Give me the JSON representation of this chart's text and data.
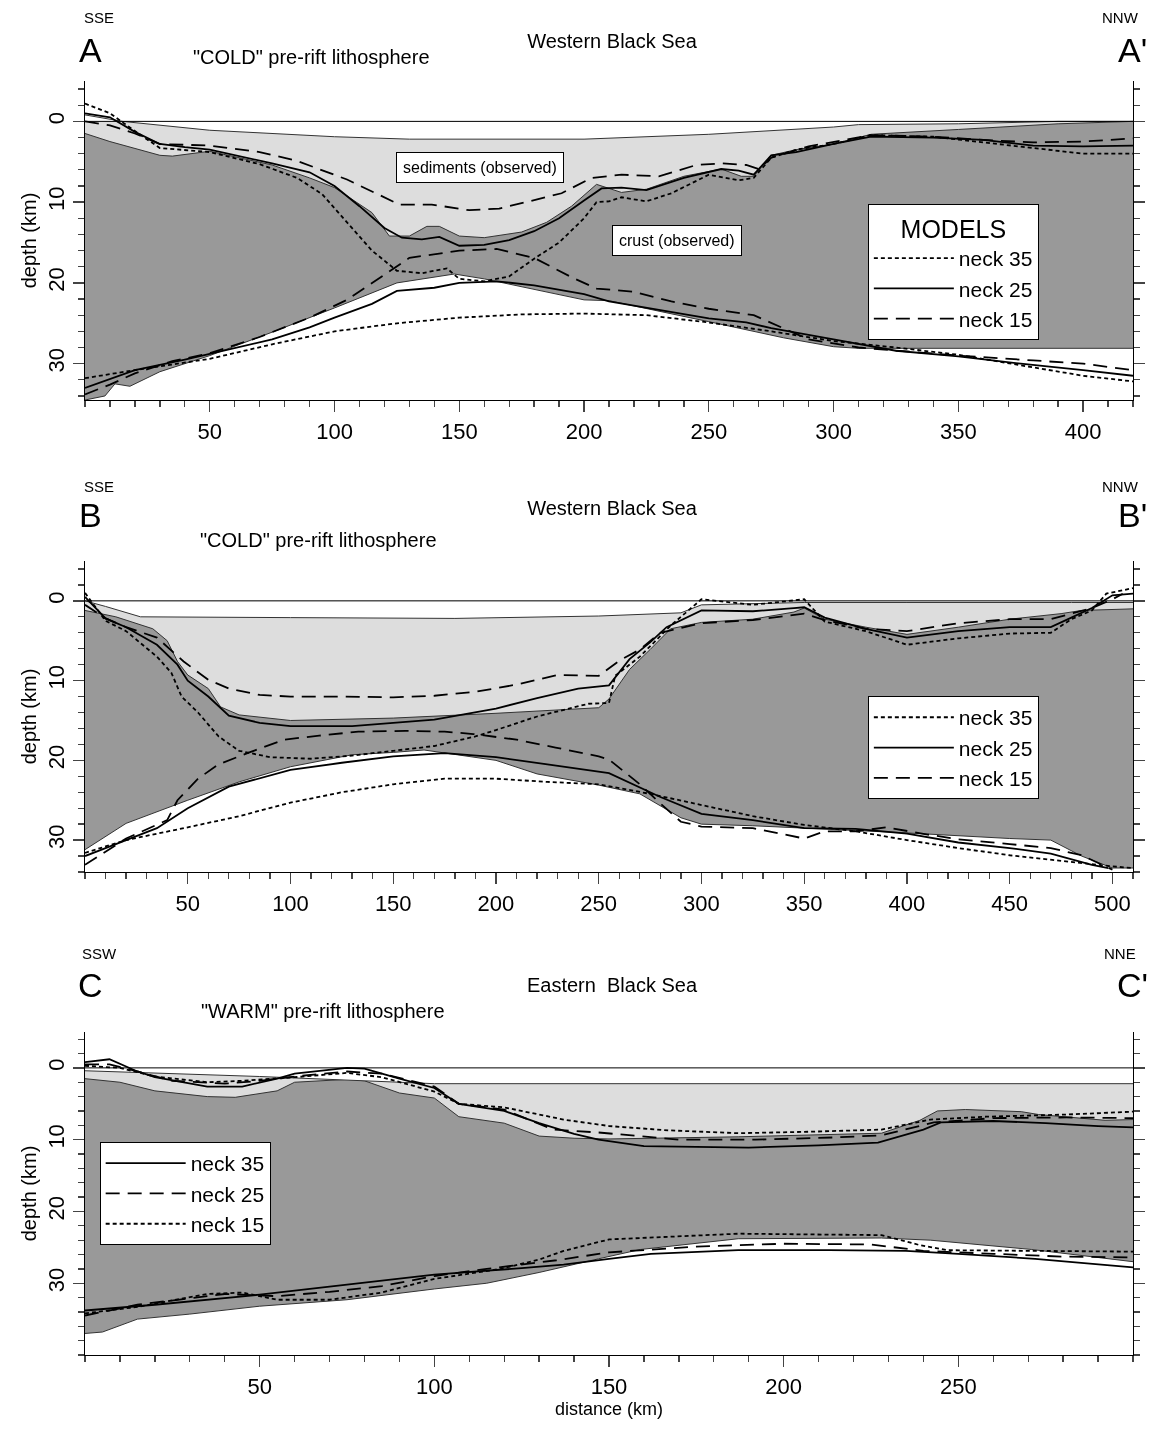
{
  "chart_data": [
    {
      "type": "line",
      "title": "Western Black Sea",
      "subtitle": "\"COLD\" pre-rift lithosphere",
      "ylabel": "depth (km)",
      "annotations": [
        "SSE",
        "A",
        "NNW",
        "A'",
        "sediments (observed)",
        "crust (observed)"
      ],
      "xlim": [
        0,
        420
      ],
      "xticks": [
        {
          "value": 0,
          "label": null
        },
        {
          "value": 10,
          "label": null
        },
        {
          "value": 20,
          "label": null
        },
        {
          "value": 30,
          "label": null
        },
        {
          "value": 40,
          "label": null
        },
        50,
        {
          "value": 60,
          "label": null
        },
        {
          "value": 70,
          "label": null
        },
        {
          "value": 80,
          "label": null
        },
        {
          "value": 90,
          "label": null
        },
        100,
        {
          "value": 110,
          "label": null
        },
        {
          "value": 120,
          "label": null
        },
        {
          "value": 130,
          "label": null
        },
        {
          "value": 140,
          "label": null
        },
        150,
        {
          "value": 160,
          "label": null
        },
        {
          "value": 170,
          "label": null
        },
        {
          "value": 180,
          "label": null
        },
        {
          "value": 190,
          "label": null
        },
        200,
        {
          "value": 210,
          "label": null
        },
        {
          "value": 220,
          "label": null
        },
        {
          "value": 230,
          "label": null
        },
        {
          "value": 240,
          "label": null
        },
        250,
        {
          "value": 260,
          "label": null
        },
        {
          "value": 270,
          "label": null
        },
        {
          "value": 280,
          "label": null
        },
        {
          "value": 290,
          "label": null
        },
        300,
        {
          "value": 310,
          "label": null
        },
        {
          "value": 320,
          "label": null
        },
        {
          "value": 330,
          "label": null
        },
        {
          "value": 340,
          "label": null
        },
        350,
        {
          "value": 360,
          "label": null
        },
        {
          "value": 370,
          "label": null
        },
        {
          "value": 380,
          "label": null
        },
        {
          "value": 390,
          "label": null
        },
        400,
        {
          "value": 410,
          "label": null
        },
        {
          "value": 420,
          "label": null
        }
      ],
      "ylim": [
        34.5,
        -5
      ],
      "yticks": [
        {
          "value": -4,
          "label": null
        },
        {
          "value": -2,
          "label": null
        },
        0,
        {
          "value": 2,
          "label": null
        },
        {
          "value": 4,
          "label": null
        },
        {
          "value": 6,
          "label": null
        },
        {
          "value": 8,
          "label": null
        },
        10,
        {
          "value": 12,
          "label": null
        },
        {
          "value": 14,
          "label": null
        },
        {
          "value": 16,
          "label": null
        },
        {
          "value": 18,
          "label": null
        },
        20,
        {
          "value": 22,
          "label": null
        },
        {
          "value": 24,
          "label": null
        },
        {
          "value": 26,
          "label": null
        },
        {
          "value": 28,
          "label": null
        },
        30,
        {
          "value": 32,
          "label": null
        },
        {
          "value": 34,
          "label": null
        }
      ],
      "ref_lines": [
        {
          "axis": "y",
          "value": 0,
          "color": "#000000"
        }
      ],
      "legend": "right",
      "legend_title": "MODELS",
      "series": [
        {
          "type": "area",
          "color": "#ffffff",
          "x": [
            0,
            15,
            50,
            100,
            130,
            200,
            250,
            300,
            310,
            350,
            390,
            420
          ],
          "values": [
            -0.8,
            0,
            1.1,
            1.9,
            2.2,
            2.2,
            1.6,
            0.7,
            0.4,
            0.3,
            0,
            0
          ]
        },
        {
          "type": "area",
          "color": "#dddddd",
          "x": [
            0,
            10,
            30,
            35,
            50,
            75,
            90,
            100,
            115,
            122,
            130,
            137,
            142,
            150,
            160,
            175,
            185,
            195,
            205,
            215,
            225,
            240,
            255,
            263,
            268,
            275,
            285,
            300,
            315,
            350,
            390,
            420
          ],
          "values": [
            1.5,
            2.5,
            4.2,
            4.3,
            3.7,
            5.4,
            7,
            8.2,
            11.3,
            14.2,
            14.2,
            13,
            13,
            14.2,
            14.4,
            13.7,
            12.5,
            10.5,
            7.8,
            8.8,
            8.4,
            6.8,
            5.9,
            6.8,
            6.8,
            4.2,
            3.5,
            2.8,
            1.6,
            1.0,
            0.3,
            0
          ]
        },
        {
          "type": "area",
          "color": "#999999",
          "x": [
            0,
            8,
            12,
            18,
            30,
            50,
            75,
            100,
            125,
            148,
            160,
            200,
            210,
            250,
            280,
            300,
            310,
            420
          ],
          "values": [
            34.5,
            34,
            32.5,
            32.8,
            31,
            29,
            26.1,
            23.1,
            20,
            18.9,
            19.5,
            22.1,
            22.2,
            24.8,
            26.8,
            27.9,
            28.1,
            28.1
          ]
        },
        {
          "name": "neck 35",
          "color": "#000000",
          "line_style": "dotted",
          "x": [
            0,
            10,
            20,
            30,
            50,
            70,
            85,
            95,
            105,
            115,
            125,
            135,
            145,
            150,
            160,
            170,
            180,
            190,
            200,
            205,
            210,
            215,
            225,
            235,
            250,
            262,
            268,
            275,
            285,
            300,
            315,
            340,
            360,
            380,
            400,
            420
          ],
          "values": [
            -2.2,
            -1,
            1.2,
            3.3,
            3.8,
            5.3,
            7,
            9,
            12.5,
            16,
            18.5,
            18.8,
            18.2,
            19.5,
            19.8,
            19.2,
            17,
            15,
            12,
            10,
            9.9,
            9.4,
            9.9,
            8.9,
            6.6,
            7.3,
            7,
            4.5,
            3.5,
            2.8,
            1.7,
            1.9,
            2.6,
            3.3,
            4,
            4
          ]
        },
        {
          "color": "#000000",
          "line_style": "dotted",
          "x": [
            0,
            20,
            50,
            75,
            100,
            125,
            150,
            175,
            200,
            225,
            250,
            275,
            300,
            325,
            350,
            375,
            400,
            420
          ],
          "values": [
            31.8,
            30.8,
            29.4,
            27.6,
            26,
            25,
            24.3,
            23.9,
            23.8,
            24,
            24.9,
            26,
            27.2,
            28,
            28.9,
            30.2,
            31.5,
            32.2
          ]
        },
        {
          "name": "neck 25",
          "color": "#000000",
          "line_style": "solid",
          "x": [
            0,
            10,
            20,
            30,
            40,
            50,
            75,
            90,
            100,
            110,
            120,
            127,
            135,
            142,
            150,
            160,
            170,
            180,
            190,
            200,
            207,
            215,
            225,
            240,
            255,
            262,
            268,
            275,
            285,
            300,
            315,
            340,
            360,
            380,
            400,
            420
          ],
          "values": [
            -1,
            -0.5,
            1.3,
            2.8,
            3.2,
            3.5,
            5.2,
            6.3,
            8,
            10.5,
            13.2,
            14.4,
            14.6,
            14.3,
            15.4,
            15.3,
            14.7,
            13.6,
            12,
            9.8,
            8.3,
            8.2,
            8.5,
            7,
            5.9,
            6.1,
            6.6,
            4.2,
            3.8,
            2.8,
            1.9,
            2,
            2.3,
            3,
            3.1,
            3
          ]
        },
        {
          "color": "#000000",
          "line_style": "solid",
          "x": [
            0,
            20,
            40,
            50,
            75,
            90,
            100,
            115,
            125,
            140,
            150,
            165,
            180,
            200,
            210,
            250,
            265,
            275,
            300,
            325,
            350,
            375,
            400,
            420
          ],
          "values": [
            33,
            30.8,
            29.5,
            28.8,
            27,
            25.5,
            24.3,
            22.6,
            21,
            20.6,
            20,
            19.8,
            20.3,
            21.4,
            22.3,
            24.4,
            24.9,
            25.6,
            27,
            28.4,
            29.1,
            30,
            30.8,
            31.5
          ]
        },
        {
          "name": "neck 15",
          "color": "#000000",
          "line_style": "dashed",
          "x": [
            0,
            10,
            20,
            30,
            50,
            70,
            85,
            105,
            126,
            139,
            154,
            166,
            182,
            191,
            203,
            215,
            230,
            245,
            255,
            265,
            270,
            275,
            290,
            315,
            340,
            360,
            380,
            400,
            420
          ],
          "values": [
            0,
            0.5,
            1.5,
            2.8,
            3,
            3.8,
            4.9,
            7.2,
            10.3,
            10.3,
            11,
            10.8,
            9.6,
            8.9,
            7,
            6.6,
            6.8,
            5.4,
            5.2,
            5.4,
            5.9,
            4.5,
            3.1,
            1.7,
            1.9,
            2.3,
            2.6,
            2.5,
            2.1
          ]
        },
        {
          "color": "#000000",
          "line_style": "dashed",
          "x": [
            0,
            10,
            20,
            35,
            50,
            70,
            90,
            105,
            120,
            130,
            150,
            165,
            180,
            195,
            205,
            220,
            235,
            250,
            268,
            290,
            310,
            350,
            380,
            400,
            420
          ],
          "values": [
            33.8,
            32.6,
            31.2,
            29.7,
            28.7,
            26.7,
            24.3,
            22.1,
            19,
            16.9,
            16,
            15.8,
            16.9,
            19.3,
            20.7,
            21.1,
            22.3,
            23.2,
            24,
            27,
            28,
            29,
            29.6,
            30,
            30.8
          ]
        }
      ]
    },
    {
      "type": "line",
      "title": "Western Black Sea",
      "subtitle": "\"COLD\" pre-rift lithosphere",
      "ylabel": "depth (km)",
      "annotations": [
        "SSE",
        "B",
        "NNW",
        "B'"
      ],
      "xlim": [
        0,
        510
      ],
      "xticks": [
        {
          "value": 0,
          "label": null
        },
        {
          "value": 10,
          "label": null
        },
        {
          "value": 20,
          "label": null
        },
        {
          "value": 30,
          "label": null
        },
        {
          "value": 40,
          "label": null
        },
        50,
        {
          "value": 60,
          "label": null
        },
        {
          "value": 70,
          "label": null
        },
        {
          "value": 80,
          "label": null
        },
        {
          "value": 90,
          "label": null
        },
        100,
        {
          "value": 110,
          "label": null
        },
        {
          "value": 120,
          "label": null
        },
        {
          "value": 130,
          "label": null
        },
        {
          "value": 140,
          "label": null
        },
        150,
        {
          "value": 160,
          "label": null
        },
        {
          "value": 170,
          "label": null
        },
        {
          "value": 180,
          "label": null
        },
        {
          "value": 190,
          "label": null
        },
        200,
        {
          "value": 210,
          "label": null
        },
        {
          "value": 220,
          "label": null
        },
        {
          "value": 230,
          "label": null
        },
        {
          "value": 240,
          "label": null
        },
        250,
        {
          "value": 260,
          "label": null
        },
        {
          "value": 270,
          "label": null
        },
        {
          "value": 280,
          "label": null
        },
        {
          "value": 290,
          "label": null
        },
        300,
        {
          "value": 310,
          "label": null
        },
        {
          "value": 320,
          "label": null
        },
        {
          "value": 330,
          "label": null
        },
        {
          "value": 340,
          "label": null
        },
        350,
        {
          "value": 360,
          "label": null
        },
        {
          "value": 370,
          "label": null
        },
        {
          "value": 380,
          "label": null
        },
        {
          "value": 390,
          "label": null
        },
        400,
        {
          "value": 410,
          "label": null
        },
        {
          "value": 420,
          "label": null
        },
        {
          "value": 430,
          "label": null
        },
        {
          "value": 440,
          "label": null
        },
        450,
        {
          "value": 460,
          "label": null
        },
        {
          "value": 470,
          "label": null
        },
        {
          "value": 480,
          "label": null
        },
        {
          "value": 490,
          "label": null
        },
        500,
        {
          "value": 510,
          "label": null
        }
      ],
      "ylim": [
        34,
        -5
      ],
      "yticks": [
        {
          "value": -4,
          "label": null
        },
        {
          "value": -2,
          "label": null
        },
        0,
        {
          "value": 2,
          "label": null
        },
        {
          "value": 4,
          "label": null
        },
        {
          "value": 6,
          "label": null
        },
        {
          "value": 8,
          "label": null
        },
        10,
        {
          "value": 12,
          "label": null
        },
        {
          "value": 14,
          "label": null
        },
        {
          "value": 16,
          "label": null
        },
        {
          "value": 18,
          "label": null
        },
        20,
        {
          "value": 22,
          "label": null
        },
        {
          "value": 24,
          "label": null
        },
        {
          "value": 26,
          "label": null
        },
        {
          "value": 28,
          "label": null
        },
        30,
        {
          "value": 32,
          "label": null
        },
        {
          "value": 34,
          "label": null
        }
      ],
      "ref_lines": [
        {
          "axis": "y",
          "value": 0,
          "color": "#000000"
        }
      ],
      "legend": "right",
      "series": [
        {
          "type": "area",
          "color": "#ffffff",
          "x": [
            0,
            10,
            27,
            100,
            180,
            250,
            290,
            300,
            350,
            400,
            480,
            510
          ],
          "values": [
            0,
            0.7,
            2,
            2.1,
            2.2,
            1.9,
            1.5,
            0.5,
            0.2,
            0.2,
            0.2,
            0.2
          ]
        },
        {
          "type": "area",
          "color": "#dddddd",
          "x": [
            0,
            15,
            33,
            40,
            45,
            50,
            60,
            66,
            75,
            100,
            150,
            200,
            250,
            255,
            265,
            275,
            285,
            300,
            325,
            345,
            350,
            360,
            380,
            400,
            425,
            450,
            475,
            485,
            510
          ],
          "values": [
            1.2,
            2,
            3.5,
            5,
            7.6,
            9.3,
            11,
            13.3,
            14.3,
            15,
            14.7,
            14.1,
            13.4,
            12.3,
            8.6,
            6.1,
            3.5,
            2.7,
            2.3,
            1.4,
            0.9,
            2.3,
            3.3,
            4.2,
            3.3,
            2.3,
            1.6,
            1.2,
            1
          ]
        },
        {
          "type": "area",
          "color": "#999999",
          "x": [
            0,
            20,
            50,
            75,
            100,
            130,
            150,
            165,
            200,
            220,
            250,
            270,
            290,
            300,
            325,
            350,
            375,
            400,
            450,
            470,
            485,
            500,
            510
          ],
          "values": [
            31.2,
            27.9,
            25,
            22.7,
            20.8,
            19.3,
            19,
            18.7,
            20,
            21.7,
            23.1,
            24.2,
            27.2,
            28,
            28.2,
            28.5,
            28.8,
            29.1,
            29.8,
            30,
            32,
            33.5,
            33.5
          ]
        },
        {
          "name": "neck 35",
          "color": "#000000",
          "line_style": "dotted",
          "x": [
            0,
            10,
            20,
            35,
            42,
            47,
            55,
            65,
            75,
            90,
            110,
            130,
            150,
            170,
            190,
            200,
            220,
            245,
            255,
            258,
            270,
            285,
            300,
            325,
            350,
            360,
            380,
            400,
            425,
            450,
            470,
            480,
            490,
            497,
            510
          ],
          "values": [
            -1,
            2.5,
            3.8,
            7,
            9,
            12,
            14,
            17,
            18.8,
            19.6,
            19.8,
            19.4,
            18.8,
            18.2,
            17,
            16.2,
            14.5,
            12.9,
            12.8,
            9.4,
            7,
            3.1,
            -0.2,
            0.5,
            -0.2,
            2.6,
            3.8,
            5.5,
            4.7,
            4.1,
            4,
            2.3,
            1.2,
            -0.9,
            -1.6
          ]
        },
        {
          "color": "#000000",
          "line_style": "dotted",
          "x": [
            0,
            10,
            20,
            50,
            75,
            100,
            125,
            150,
            175,
            200,
            225,
            250,
            275,
            300,
            325,
            350,
            375,
            400,
            425,
            450,
            475,
            500,
            510
          ],
          "values": [
            31.6,
            30.8,
            30,
            28.4,
            27,
            25.3,
            24,
            23,
            22.3,
            22.3,
            22.7,
            23,
            24.2,
            25.6,
            27,
            28.1,
            28.9,
            30,
            31,
            31.9,
            32.6,
            33.3,
            33.5
          ]
        },
        {
          "name": "neck 25",
          "color": "#000000",
          "line_style": "solid",
          "x": [
            0,
            10,
            20,
            35,
            45,
            50,
            60,
            70,
            85,
            100,
            130,
            150,
            170,
            185,
            200,
            220,
            240,
            255,
            265,
            275,
            283,
            300,
            325,
            345,
            350,
            360,
            380,
            400,
            425,
            450,
            470,
            480,
            490,
            500,
            510
          ],
          "values": [
            -0.5,
            2.2,
            3.3,
            5.5,
            8,
            10,
            12,
            14.4,
            15.3,
            15.7,
            15.7,
            15.3,
            14.9,
            14.2,
            13.5,
            12.2,
            11,
            10.6,
            7.3,
            5.2,
            3.3,
            1.2,
            1.3,
            0.9,
            0.8,
            2.1,
            3.5,
            4.6,
            3.8,
            3.3,
            3.3,
            2.1,
            0.9,
            -0.7,
            -0.9
          ]
        },
        {
          "color": "#000000",
          "line_style": "solid",
          "x": [
            0,
            10,
            20,
            35,
            50,
            70,
            100,
            125,
            150,
            175,
            200,
            225,
            255,
            280,
            300,
            325,
            350,
            375,
            400,
            425,
            450,
            470,
            490,
            498
          ],
          "values": [
            32,
            31,
            30,
            28.5,
            26,
            23.3,
            21.2,
            20.3,
            19.5,
            19.1,
            19.6,
            20.5,
            21.6,
            24.6,
            26.7,
            27.5,
            28.5,
            28.6,
            29.2,
            30.3,
            31,
            31.7,
            33.1,
            33.5
          ]
        },
        {
          "name": "neck 15",
          "color": "#000000",
          "line_style": "dashed",
          "x": [
            0,
            10,
            20,
            35,
            48,
            60,
            70,
            85,
            100,
            125,
            150,
            170,
            190,
            210,
            230,
            250,
            260,
            270,
            280,
            300,
            325,
            350,
            360,
            380,
            400,
            425,
            450,
            470,
            480,
            490,
            500,
            505
          ],
          "values": [
            0.5,
            2.2,
            3.3,
            4.6,
            7.6,
            9.9,
            11,
            11.8,
            12,
            12,
            12.1,
            11.9,
            11.4,
            10.5,
            9.3,
            9.4,
            7.5,
            6.1,
            4,
            2.8,
            2.4,
            1.6,
            2.4,
            3.5,
            3.8,
            2.8,
            2.3,
            2.3,
            1.6,
            0.9,
            -0.2,
            -0.9
          ]
        },
        {
          "color": "#000000",
          "line_style": "dashed",
          "x": [
            0,
            20,
            40,
            45,
            55,
            65,
            80,
            97,
            114,
            133,
            156,
            175,
            189,
            210,
            229,
            250,
            255,
            270,
            280,
            290,
            300,
            325,
            350,
            360,
            375,
            390,
            410,
            425,
            450,
            470,
            485,
            500
          ],
          "values": [
            33.1,
            29.8,
            27.5,
            25,
            22.3,
            20.5,
            19,
            17.4,
            16.9,
            16.4,
            16.3,
            16.4,
            16.7,
            17.4,
            18.4,
            19.5,
            19.9,
            23,
            25.4,
            27.7,
            28.3,
            28.5,
            29.8,
            28.9,
            28.9,
            28.4,
            29.3,
            29.9,
            30.5,
            31,
            31.9,
            33.7
          ]
        }
      ]
    },
    {
      "type": "line",
      "title": "Eastern  Black Sea",
      "subtitle": "\"WARM\" pre-rift lithosphere",
      "ylabel": "depth (km)",
      "xlabel": "distance (km)",
      "annotations": [
        "SSW",
        "C",
        "NNE",
        "C'"
      ],
      "xlim": [
        0,
        300
      ],
      "xticks": [
        {
          "value": 0,
          "label": null
        },
        {
          "value": 10,
          "label": null
        },
        {
          "value": 20,
          "label": null
        },
        {
          "value": 30,
          "label": null
        },
        {
          "value": 40,
          "label": null
        },
        50,
        {
          "value": 60,
          "label": null
        },
        {
          "value": 70,
          "label": null
        },
        {
          "value": 80,
          "label": null
        },
        {
          "value": 90,
          "label": null
        },
        100,
        {
          "value": 110,
          "label": null
        },
        {
          "value": 120,
          "label": null
        },
        {
          "value": 130,
          "label": null
        },
        {
          "value": 140,
          "label": null
        },
        150,
        {
          "value": 160,
          "label": null
        },
        {
          "value": 170,
          "label": null
        },
        {
          "value": 180,
          "label": null
        },
        {
          "value": 190,
          "label": null
        },
        200,
        {
          "value": 210,
          "label": null
        },
        {
          "value": 220,
          "label": null
        },
        {
          "value": 230,
          "label": null
        },
        {
          "value": 240,
          "label": null
        },
        250,
        {
          "value": 260,
          "label": null
        },
        {
          "value": 270,
          "label": null
        },
        {
          "value": 280,
          "label": null
        },
        {
          "value": 290,
          "label": null
        },
        {
          "value": 300,
          "label": null
        }
      ],
      "ylim": [
        40,
        -5
      ],
      "yticks": [
        {
          "value": -4,
          "label": null
        },
        {
          "value": -2,
          "label": null
        },
        0,
        {
          "value": 2,
          "label": null
        },
        {
          "value": 4,
          "label": null
        },
        {
          "value": 6,
          "label": null
        },
        {
          "value": 8,
          "label": null
        },
        10,
        {
          "value": 12,
          "label": null
        },
        {
          "value": 14,
          "label": null
        },
        {
          "value": 16,
          "label": null
        },
        {
          "value": 18,
          "label": null
        },
        20,
        {
          "value": 22,
          "label": null
        },
        {
          "value": 24,
          "label": null
        },
        {
          "value": 26,
          "label": null
        },
        {
          "value": 28,
          "label": null
        },
        30,
        {
          "value": 32,
          "label": null
        },
        {
          "value": 34,
          "label": null
        },
        {
          "value": 36,
          "label": null
        },
        {
          "value": 38,
          "label": null
        },
        {
          "value": 40,
          "label": null
        }
      ],
      "ref_lines": [
        {
          "axis": "y",
          "value": 0,
          "color": "#000000"
        }
      ],
      "legend": "left",
      "series": [
        {
          "type": "area",
          "color": "#ffffff",
          "x": [
            0,
            50,
            100,
            300
          ],
          "values": [
            0.4,
            1.2,
            2.2,
            2.2
          ]
        },
        {
          "type": "area",
          "color": "#dddddd",
          "x": [
            0,
            10,
            20,
            35,
            43,
            55,
            60,
            75,
            80,
            90,
            100,
            107,
            120,
            130,
            140,
            150,
            187,
            228,
            239,
            244,
            252,
            268,
            273,
            292,
            300
          ],
          "values": [
            1.5,
            2,
            3.2,
            4,
            4.1,
            3.2,
            2,
            1.6,
            1.8,
            3.5,
            4.2,
            6.8,
            7.7,
            9.5,
            9.8,
            9.9,
            9.6,
            9.1,
            7.3,
            6,
            5.8,
            6.1,
            6.5,
            7.3,
            7.2
          ]
        },
        {
          "type": "area",
          "color": "#999999",
          "x": [
            0,
            5,
            15,
            30,
            50,
            75,
            100,
            115,
            130,
            147,
            159,
            187,
            228,
            242,
            271,
            300
          ],
          "values": [
            37,
            36.8,
            35,
            34.3,
            33.2,
            32.3,
            30.8,
            30,
            28.5,
            26.6,
            25.3,
            23.8,
            23.7,
            24,
            25.3,
            27
          ]
        },
        {
          "name": "neck 35",
          "color": "#000000",
          "line_style": "solid",
          "x": [
            0,
            7,
            15,
            20,
            35,
            45,
            55,
            60,
            75,
            80,
            90,
            100,
            107,
            120,
            130,
            140,
            147,
            160,
            175,
            190,
            210,
            227,
            240,
            245,
            260,
            275,
            290,
            300
          ],
          "values": [
            -0.8,
            -1.2,
            0.5,
            1.3,
            2.6,
            2.6,
            1.5,
            0.8,
            0,
            0.1,
            1.5,
            2.8,
            5,
            6,
            7.7,
            9.2,
            10,
            10.9,
            11,
            11.1,
            10.8,
            10.4,
            8.6,
            7.6,
            7.4,
            7.7,
            8.1,
            8.3
          ]
        },
        {
          "color": "#000000",
          "line_style": "solid",
          "x": [
            0,
            20,
            50,
            75,
            100,
            125,
            137,
            150,
            162,
            187,
            213,
            235,
            250,
            272,
            300
          ],
          "values": [
            33.8,
            33,
            31.6,
            30.2,
            28.8,
            27.9,
            27.4,
            26.6,
            25.9,
            25.4,
            25.4,
            25.5,
            25.9,
            26.6,
            27.8
          ]
        },
        {
          "name": "neck 25",
          "color": "#000000",
          "line_style": "dashed",
          "x": [
            0,
            7,
            15,
            25,
            40,
            50,
            60,
            75,
            85,
            100,
            107,
            120,
            134,
            147,
            170,
            192,
            214,
            228,
            243,
            260,
            281,
            300
          ],
          "values": [
            -0.5,
            -0.5,
            0.5,
            1.8,
            2.2,
            1.8,
            1.2,
            0.5,
            0.8,
            2.6,
            5,
            5.8,
            8.6,
            9,
            10,
            10,
            9.7,
            9.4,
            7.6,
            7,
            6.9,
            7
          ]
        },
        {
          "color": "#000000",
          "line_style": "dashed",
          "x": [
            0,
            15,
            40,
            55,
            70,
            85,
            100,
            115,
            135,
            150,
            175,
            200,
            225,
            240,
            260,
            280,
            300
          ],
          "values": [
            34.5,
            33,
            31.5,
            31.8,
            31.2,
            30.4,
            29,
            28,
            26.8,
            25.7,
            24.9,
            24.5,
            24.6,
            25.5,
            25.9,
            26.3,
            26.4
          ]
        },
        {
          "name": "neck 15",
          "color": "#000000",
          "line_style": "dotted",
          "x": [
            0,
            10,
            20,
            35,
            45,
            60,
            75,
            85,
            100,
            107,
            120,
            137,
            150,
            167,
            187,
            207,
            228,
            242,
            258,
            281,
            300
          ],
          "values": [
            -0.3,
            0,
            1.2,
            2,
            1.8,
            1.3,
            0.7,
            1.3,
            3.3,
            5,
            5.5,
            7.2,
            8.1,
            8.7,
            9.1,
            8.9,
            8.6,
            7.2,
            6.8,
            6.5,
            6.1
          ]
        },
        {
          "color": "#000000",
          "line_style": "dotted",
          "x": [
            0,
            15,
            35,
            45,
            55,
            70,
            85,
            100,
            119,
            130,
            137,
            150,
            187,
            228,
            239,
            247,
            300
          ],
          "values": [
            34.2,
            33.3,
            31.5,
            31.3,
            32.3,
            32.3,
            31.3,
            29.4,
            28,
            26.7,
            25.5,
            23.9,
            23.1,
            23.3,
            24.7,
            25.4,
            25.6
          ]
        }
      ]
    }
  ]
}
